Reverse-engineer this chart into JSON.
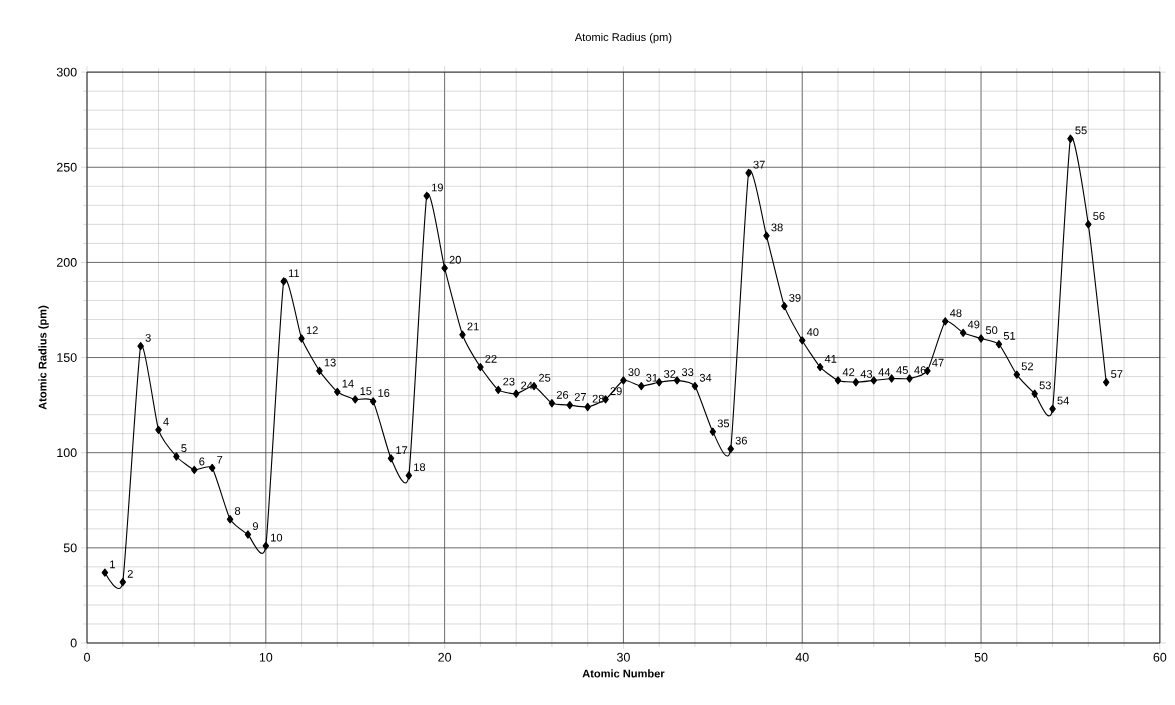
{
  "chart_data": {
    "type": "line",
    "title": "Atomic Radius (pm)",
    "xlabel": "Atomic Number",
    "ylabel": "Atomic Radius (pm)",
    "xlim": [
      0,
      60
    ],
    "xticks": [
      0,
      10,
      20,
      30,
      40,
      50,
      60
    ],
    "ylim": [
      0,
      300
    ],
    "yticks": [
      0,
      50,
      100,
      150,
      200,
      250,
      300
    ],
    "grid": true,
    "marker": "diamond",
    "line_style": "solid",
    "x": [
      1,
      2,
      3,
      4,
      5,
      6,
      7,
      8,
      9,
      10,
      11,
      12,
      13,
      14,
      15,
      16,
      17,
      18,
      19,
      20,
      21,
      22,
      23,
      24,
      25,
      26,
      27,
      28,
      29,
      30,
      31,
      32,
      33,
      34,
      35,
      36,
      37,
      38,
      39,
      40,
      41,
      42,
      43,
      44,
      45,
      46,
      47,
      48,
      49,
      50,
      51,
      52,
      53,
      54,
      55,
      56,
      57
    ],
    "series": [
      {
        "color": "#000000",
        "values": [
          37,
          32,
          156,
          112,
          98,
          91,
          92,
          65,
          57,
          51,
          190,
          160,
          143,
          132,
          128,
          127,
          97,
          88,
          235,
          197,
          162,
          145,
          133,
          131,
          135,
          126,
          125,
          124,
          128,
          138,
          135,
          137,
          138,
          135,
          111,
          102,
          247,
          214,
          177,
          159,
          145,
          138,
          137,
          138,
          139,
          139,
          143,
          169,
          163,
          160,
          157,
          141,
          131,
          123,
          265,
          220,
          137
        ]
      }
    ],
    "annotations": [
      {
        "text": "1",
        "x": 1,
        "y": 37
      },
      {
        "text": "2",
        "x": 2,
        "y": 32
      },
      {
        "text": "3",
        "x": 3,
        "y": 156
      },
      {
        "text": "4",
        "x": 4,
        "y": 112
      },
      {
        "text": "5",
        "x": 5,
        "y": 98
      },
      {
        "text": "6",
        "x": 6,
        "y": 91
      },
      {
        "text": "7",
        "x": 7,
        "y": 92
      },
      {
        "text": "8",
        "x": 8,
        "y": 65
      },
      {
        "text": "9",
        "x": 9,
        "y": 57
      },
      {
        "text": "10",
        "x": 10,
        "y": 51
      },
      {
        "text": "11",
        "x": 11,
        "y": 190
      },
      {
        "text": "12",
        "x": 12,
        "y": 160
      },
      {
        "text": "13",
        "x": 13,
        "y": 143
      },
      {
        "text": "14",
        "x": 14,
        "y": 132
      },
      {
        "text": "15",
        "x": 15,
        "y": 128
      },
      {
        "text": "16",
        "x": 16,
        "y": 127
      },
      {
        "text": "17",
        "x": 17,
        "y": 97
      },
      {
        "text": "18",
        "x": 18,
        "y": 88
      },
      {
        "text": "19",
        "x": 19,
        "y": 235
      },
      {
        "text": "20",
        "x": 20,
        "y": 197
      },
      {
        "text": "21",
        "x": 21,
        "y": 162
      },
      {
        "text": "22",
        "x": 22,
        "y": 145
      },
      {
        "text": "23",
        "x": 23,
        "y": 133
      },
      {
        "text": "24",
        "x": 24,
        "y": 131
      },
      {
        "text": "25",
        "x": 25,
        "y": 135
      },
      {
        "text": "26",
        "x": 26,
        "y": 126
      },
      {
        "text": "27",
        "x": 27,
        "y": 125
      },
      {
        "text": "28",
        "x": 28,
        "y": 124
      },
      {
        "text": "29",
        "x": 29,
        "y": 128
      },
      {
        "text": "30",
        "x": 30,
        "y": 138
      },
      {
        "text": "31",
        "x": 31,
        "y": 135
      },
      {
        "text": "32",
        "x": 32,
        "y": 137
      },
      {
        "text": "33",
        "x": 33,
        "y": 138
      },
      {
        "text": "34",
        "x": 34,
        "y": 135
      },
      {
        "text": "35",
        "x": 35,
        "y": 111
      },
      {
        "text": "36",
        "x": 36,
        "y": 102
      },
      {
        "text": "37",
        "x": 37,
        "y": 247
      },
      {
        "text": "38",
        "x": 38,
        "y": 214
      },
      {
        "text": "39",
        "x": 39,
        "y": 177
      },
      {
        "text": "40",
        "x": 40,
        "y": 159
      },
      {
        "text": "41",
        "x": 41,
        "y": 145
      },
      {
        "text": "42",
        "x": 42,
        "y": 138
      },
      {
        "text": "43",
        "x": 43,
        "y": 137
      },
      {
        "text": "44",
        "x": 44,
        "y": 138
      },
      {
        "text": "45",
        "x": 45,
        "y": 139
      },
      {
        "text": "46",
        "x": 46,
        "y": 139
      },
      {
        "text": "47",
        "x": 47,
        "y": 143
      },
      {
        "text": "48",
        "x": 48,
        "y": 169
      },
      {
        "text": "49",
        "x": 49,
        "y": 163
      },
      {
        "text": "50",
        "x": 50,
        "y": 160
      },
      {
        "text": "51",
        "x": 51,
        "y": 157
      },
      {
        "text": "52",
        "x": 52,
        "y": 141
      },
      {
        "text": "53",
        "x": 53,
        "y": 131
      },
      {
        "text": "54",
        "x": 54,
        "y": 123
      },
      {
        "text": "55",
        "x": 55,
        "y": 265
      },
      {
        "text": "56",
        "x": 56,
        "y": 220
      },
      {
        "text": "57",
        "x": 57,
        "y": 137
      }
    ]
  }
}
